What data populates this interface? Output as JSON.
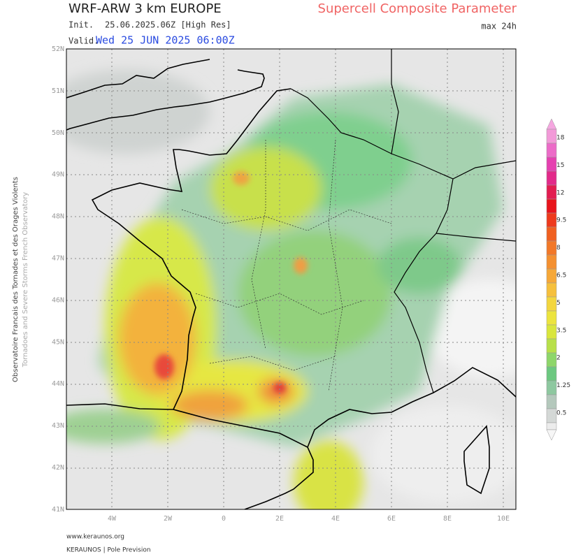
{
  "header": {
    "title": "WRF-ARW 3 km EUROPE",
    "parameter": "Supercell Composite Parameter",
    "period": "max 24h",
    "init_label": "Init.",
    "init": "25.06.2025.06Z [High Res]",
    "valid_label": "Valid.",
    "valid": "Wed 25 JUN 2025 06:00Z"
  },
  "map": {
    "lat_labels": [
      "52N",
      "51N",
      "50N",
      "49N",
      "48N",
      "47N",
      "46N",
      "45N",
      "44N",
      "43N",
      "42N",
      "41N"
    ],
    "lon_labels": [
      "4W",
      "2W",
      "0",
      "2E",
      "4E",
      "6E",
      "8E",
      "10E"
    ]
  },
  "legend": {
    "levels": [
      18,
      15,
      12,
      9.5,
      8,
      6.5,
      5,
      3.5,
      2,
      1.25,
      0.5
    ]
  },
  "sidebar": {
    "line1": "Observatoire Francais des Tornades et des Orages Violents",
    "line2": "Tornadoes and Severe Storms French Observatory"
  },
  "footer": {
    "url": "www.keraunos.org",
    "credit": "KERAUNOS | Pole Prevision"
  }
}
